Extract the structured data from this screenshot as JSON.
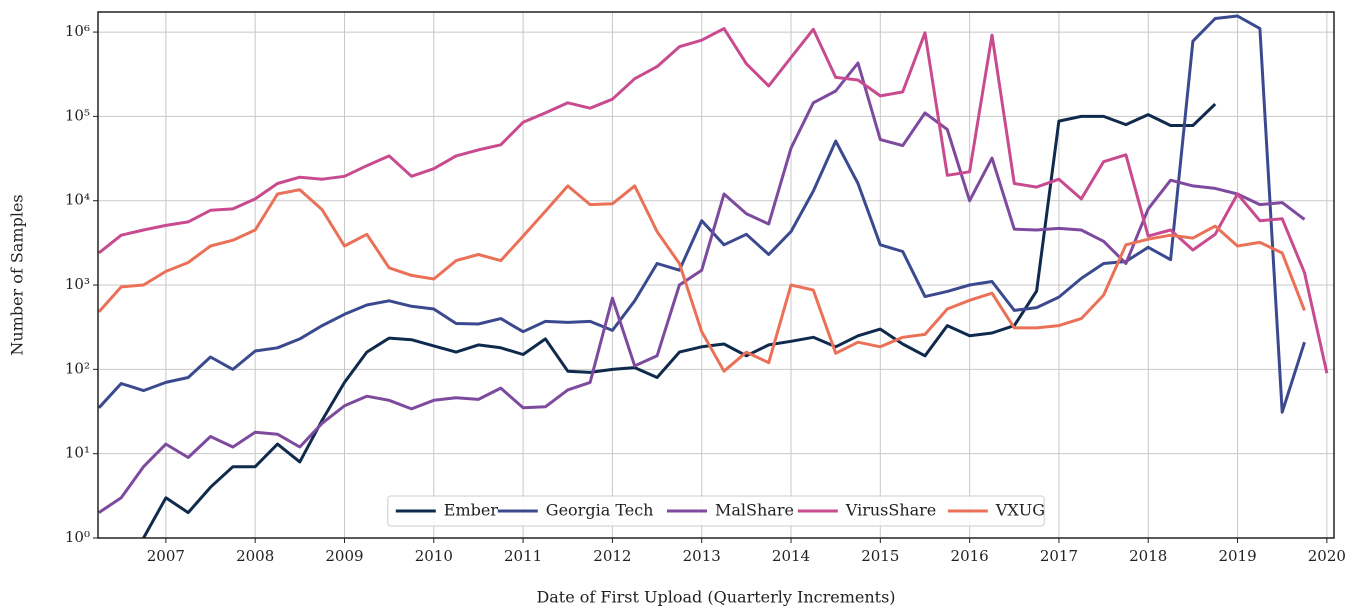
{
  "chart_data": {
    "type": "line",
    "xlabel": "Date of First Upload (Quarterly Increments)",
    "ylabel": "Number of Samples",
    "log_y": true,
    "grid": true,
    "legend": "lower center",
    "x": [
      2006.25,
      2006.5,
      2006.75,
      2007,
      2007.25,
      2007.5,
      2007.75,
      2008,
      2008.25,
      2008.5,
      2008.75,
      2009,
      2009.25,
      2009.5,
      2009.75,
      2010,
      2010.25,
      2010.5,
      2010.75,
      2011,
      2011.25,
      2011.5,
      2011.75,
      2012,
      2012.25,
      2012.5,
      2012.75,
      2013,
      2013.25,
      2013.5,
      2013.75,
      2014,
      2014.25,
      2014.5,
      2014.75,
      2015,
      2015.25,
      2015.5,
      2015.75,
      2016,
      2016.25,
      2016.5,
      2016.75,
      2017,
      2017.25,
      2017.5,
      2017.75,
      2018,
      2018.25,
      2018.5,
      2018.75,
      2019,
      2019.25,
      2019.5,
      2019.75,
      2020
    ],
    "xlim": [
      2006.24,
      2020.08
    ],
    "xticks": [
      2007,
      2008,
      2009,
      2010,
      2011,
      2012,
      2013,
      2014,
      2015,
      2016,
      2017,
      2018,
      2019,
      2020
    ],
    "ylim": [
      1,
      1730000
    ],
    "yticks": [
      {
        "value": 1,
        "label": "10⁰"
      },
      {
        "value": 10,
        "label": "10¹"
      },
      {
        "value": 100,
        "label": "10²"
      },
      {
        "value": 1000,
        "label": "10³"
      },
      {
        "value": 10000,
        "label": "10⁴"
      },
      {
        "value": 100000,
        "label": "10⁵"
      },
      {
        "value": 1000000,
        "label": "10⁶"
      }
    ],
    "series": [
      {
        "name": "Ember",
        "color": "#0f2a4d",
        "values": [
          null,
          null,
          1,
          3,
          2,
          4,
          7,
          7,
          13,
          8,
          25,
          70,
          160,
          235,
          225,
          190,
          160,
          195,
          180,
          150,
          230,
          95,
          92,
          100,
          105,
          80,
          160,
          185,
          200,
          145,
          195,
          215,
          240,
          185,
          250,
          300,
          200,
          145,
          330,
          250,
          270,
          330,
          850,
          88000,
          100000,
          100000,
          80000,
          105000,
          78000,
          78000,
          140000,
          null,
          null,
          null,
          null,
          null
        ]
      },
      {
        "name": "Georgia Tech",
        "color": "#3b4a8e",
        "values": [
          35,
          68,
          56,
          70,
          80,
          140,
          100,
          165,
          180,
          230,
          330,
          450,
          580,
          650,
          560,
          520,
          350,
          345,
          400,
          280,
          370,
          360,
          370,
          290,
          650,
          1800,
          1500,
          5800,
          3000,
          4000,
          2300,
          4300,
          13000,
          51000,
          16000,
          3000,
          2500,
          730,
          840,
          1000,
          1100,
          500,
          540,
          720,
          1200,
          1800,
          1900,
          2800,
          2000,
          780000,
          1450000,
          1550000,
          1100000,
          31,
          210,
          null
        ]
      },
      {
        "name": "MalShare",
        "color": "#7d4a9e",
        "values": [
          2,
          3,
          7,
          13,
          9,
          16,
          12,
          18,
          17,
          12,
          23,
          37,
          48,
          43,
          34,
          43,
          46,
          44,
          60,
          35,
          36,
          57,
          70,
          700,
          110,
          145,
          1000,
          1500,
          12000,
          7000,
          5300,
          42000,
          145000,
          200000,
          430000,
          53000,
          45000,
          110000,
          70000,
          10000,
          32000,
          4600,
          4500,
          4700,
          4500,
          3300,
          1800,
          8000,
          17500,
          15000,
          14000,
          12000,
          9000,
          9500,
          6000,
          null
        ]
      },
      {
        "name": "VirusShare",
        "color": "#c94b8f",
        "values": [
          2400,
          3900,
          4500,
          5100,
          5600,
          7700,
          8000,
          10500,
          16000,
          19000,
          18000,
          19500,
          26000,
          34000,
          19500,
          24000,
          34000,
          40000,
          46000,
          85000,
          110000,
          145000,
          125000,
          160000,
          280000,
          390000,
          670000,
          800000,
          1100000,
          420000,
          230000,
          500000,
          1080000,
          290000,
          270000,
          175000,
          195000,
          980000,
          20000,
          22000,
          920000,
          16000,
          14500,
          18000,
          10500,
          29000,
          35000,
          3800,
          4500,
          2600,
          4000,
          12000,
          5800,
          6100,
          1400,
          90
        ]
      },
      {
        "name": "VXUG",
        "color": "#ea7158",
        "values": [
          480,
          950,
          1000,
          1450,
          1850,
          2900,
          3400,
          4500,
          12000,
          13500,
          7800,
          2900,
          4000,
          1600,
          1300,
          1180,
          1950,
          2300,
          1950,
          3800,
          7500,
          15000,
          9000,
          9200,
          15000,
          4300,
          1800,
          280,
          95,
          160,
          120,
          1000,
          870,
          155,
          210,
          185,
          240,
          260,
          520,
          660,
          800,
          310,
          310,
          330,
          400,
          760,
          3000,
          3500,
          3900,
          3600,
          5000,
          2900,
          3200,
          2400,
          500,
          null
        ]
      }
    ]
  }
}
